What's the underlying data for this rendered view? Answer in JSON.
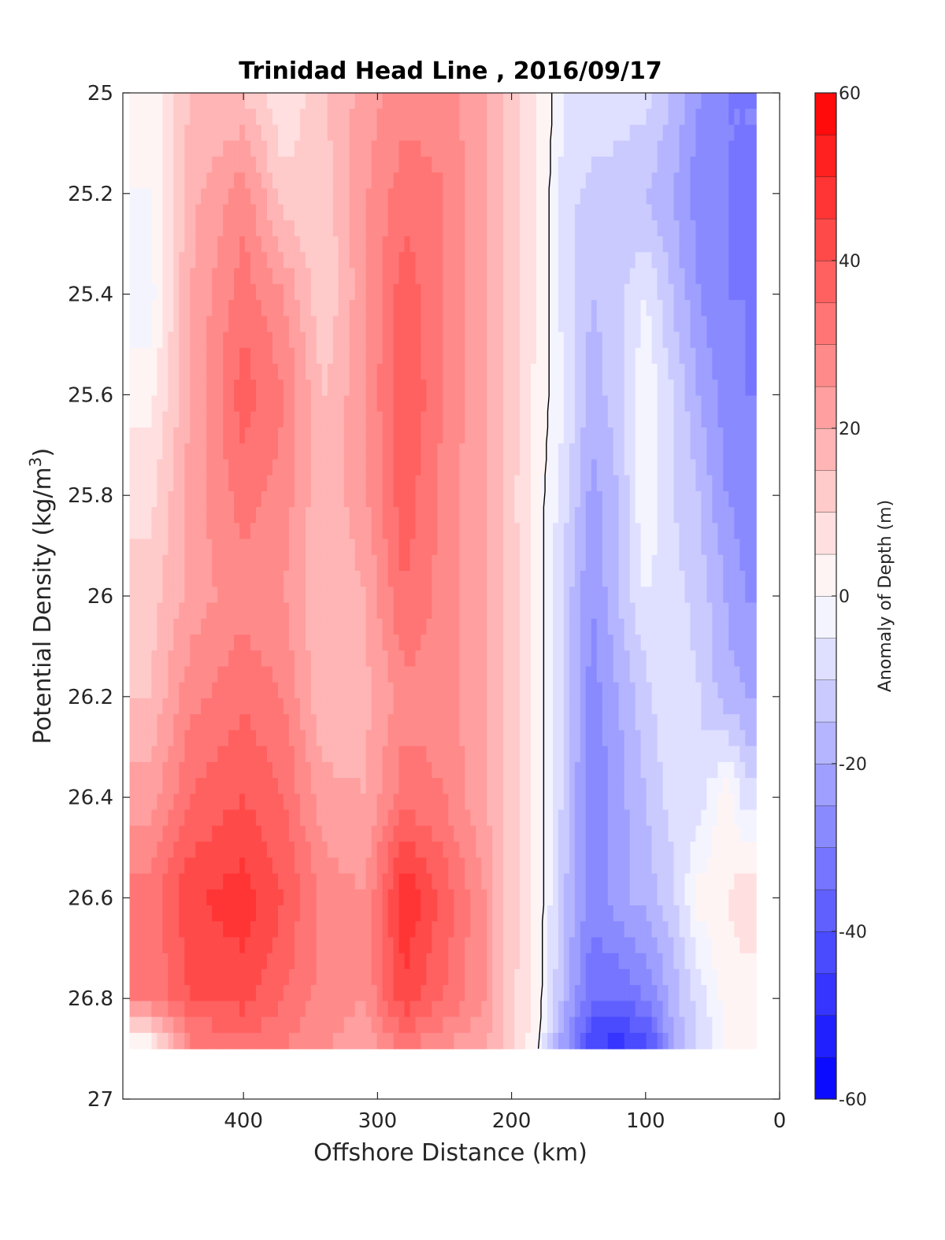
{
  "chart_data": {
    "type": "heatmap",
    "title": "Trinidad Head Line , 2016/09/17",
    "xlabel": "Offshore Distance (km)",
    "ylabel_main": "Potential Density (kg/m",
    "ylabel_sup": "3",
    "ylabel_close": ")",
    "colorbar_label": "Anomaly of Depth (m)",
    "xlim": [
      490,
      0
    ],
    "ylim": [
      25,
      27
    ],
    "x_reversed": true,
    "y_reversed": true,
    "xticks": [
      400,
      300,
      200,
      100,
      0
    ],
    "yticks": [
      25,
      25.2,
      25.4,
      25.6,
      25.8,
      26,
      26.2,
      26.4,
      26.6,
      26.8,
      27
    ],
    "xtick_labels": [
      "400",
      "300",
      "200",
      "100",
      "0"
    ],
    "ytick_labels": [
      "25",
      "25.2",
      "25.4",
      "25.6",
      "25.8",
      "26",
      "26.2",
      "26.4",
      "26.6",
      "26.8",
      "27"
    ],
    "colorbar": {
      "min": -60,
      "max": 60,
      "step": 5,
      "ticks": [
        60,
        40,
        20,
        0,
        -20,
        -40,
        -60
      ],
      "tick_labels": [
        "60",
        "40",
        "20",
        "0",
        "-20",
        "-40",
        "-60"
      ]
    },
    "colormap": {
      "negative": "#0000ff",
      "zero": "#ffffff",
      "positive": "#ff0000"
    },
    "contour_line_color": "#000000",
    "grid": false,
    "x": [
      470,
      440,
      400,
      370,
      340,
      310,
      280,
      250,
      220,
      200,
      180,
      160,
      140,
      120,
      100,
      80,
      60,
      40,
      25
    ],
    "y": [
      25.0,
      25.2,
      25.4,
      25.6,
      25.8,
      26.0,
      26.2,
      26.4,
      26.6,
      26.8,
      26.9
    ],
    "z": [
      [
        0,
        15,
        15,
        5,
        15,
        22,
        28,
        28,
        20,
        12,
        5,
        -5,
        -5,
        -8,
        -8,
        -15,
        -25,
        -30,
        -30
      ],
      [
        0,
        18,
        28,
        12,
        12,
        24,
        33,
        30,
        20,
        12,
        5,
        -8,
        -12,
        -12,
        -15,
        -20,
        -28,
        -30,
        -30
      ],
      [
        -3,
        20,
        33,
        25,
        10,
        24,
        38,
        30,
        20,
        12,
        5,
        -8,
        -15,
        -12,
        -5,
        -15,
        -25,
        -30,
        -30
      ],
      [
        3,
        20,
        38,
        30,
        15,
        24,
        40,
        30,
        20,
        12,
        3,
        -5,
        -18,
        -12,
        0,
        -10,
        -20,
        -28,
        -30
      ],
      [
        8,
        22,
        32,
        28,
        15,
        24,
        38,
        28,
        20,
        12,
        2,
        -8,
        -22,
        -15,
        0,
        -10,
        -15,
        -25,
        -28
      ],
      [
        12,
        22,
        28,
        25,
        15,
        20,
        35,
        28,
        20,
        12,
        3,
        -12,
        -25,
        -15,
        -5,
        -8,
        -12,
        -20,
        -25
      ],
      [
        15,
        28,
        34,
        30,
        15,
        18,
        28,
        28,
        20,
        12,
        3,
        -12,
        -28,
        -20,
        -12,
        -5,
        -10,
        -18,
        -20
      ],
      [
        22,
        35,
        40,
        35,
        22,
        20,
        33,
        30,
        20,
        12,
        3,
        -12,
        -30,
        -22,
        -15,
        -8,
        -8,
        3,
        -8
      ],
      [
        32,
        44,
        48,
        40,
        28,
        25,
        50,
        38,
        25,
        12,
        3,
        -15,
        -28,
        -22,
        -18,
        -12,
        2,
        5,
        8
      ],
      [
        30,
        40,
        42,
        35,
        28,
        25,
        44,
        35,
        25,
        12,
        2,
        -18,
        -35,
        -35,
        -30,
        -18,
        -8,
        2,
        3
      ],
      [
        0,
        28,
        33,
        30,
        25,
        22,
        30,
        25,
        20,
        12,
        0,
        -25,
        -45,
        -48,
        -45,
        -20,
        -10,
        0,
        0
      ]
    ]
  }
}
